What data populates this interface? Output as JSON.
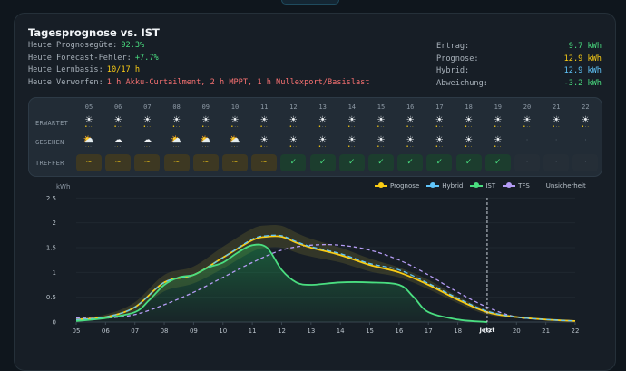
{
  "title": "Tagesprognose vs. IST",
  "info": [
    {
      "label": "Heute Prognosegüte:",
      "value": "92.3%",
      "color": "#4ade80"
    },
    {
      "label": "Heute Forecast-Fehler:",
      "value": "+7.7%",
      "color": "#4ade80"
    },
    {
      "label": "Heute Lernbasis:",
      "value": "10/17 h",
      "color": "#facc15"
    },
    {
      "label": "Heute Verworfen:",
      "value": "1 h Akku-Curtailment, 2 h MPPT, 1 h Nullexport/Basislast",
      "color": "#f87171"
    }
  ],
  "stats": [
    {
      "label": "Ertrag:",
      "value": "9.7 kWh",
      "color": "#4ade80"
    },
    {
      "label": "Prognose:",
      "value": "12.9 kWh",
      "color": "#facc15"
    },
    {
      "label": "Hybrid:",
      "value": "12.9 kWh",
      "color": "#60c5fa"
    },
    {
      "label": "Abweichung:",
      "value": "-3.2 kWh",
      "color": "#4ade80"
    }
  ],
  "weather_grid": {
    "hours": [
      "05",
      "06",
      "07",
      "08",
      "09",
      "10",
      "11",
      "12",
      "13",
      "14",
      "15",
      "16",
      "17",
      "18",
      "19",
      "20",
      "21",
      "22"
    ],
    "row_labels": [
      "ERWARTET",
      "GESEHEN",
      "TREFFER"
    ],
    "expected": [
      "sun",
      "sun",
      "sun",
      "sun",
      "sun",
      "sun",
      "sun",
      "sun",
      "sun",
      "sun",
      "sun",
      "sun",
      "sun",
      "sun",
      "sun",
      "sun",
      "sun",
      "sun"
    ],
    "seen": [
      "partly",
      "cloud",
      "cloud",
      "partly",
      "partly",
      "partly",
      "sun",
      "sun",
      "sun",
      "sun",
      "sun",
      "sun",
      "sun",
      "sun",
      "sun",
      "none",
      "none",
      "none"
    ],
    "hits": [
      "~",
      "~",
      "~",
      "~",
      "~",
      "~",
      "~",
      "✓",
      "✓",
      "✓",
      "✓",
      "✓",
      "✓",
      "✓",
      "✓",
      "·",
      "·",
      "·"
    ]
  },
  "legend": [
    "Prognose",
    "Hybrid",
    "IST",
    "TFS",
    "Unsicherheit"
  ],
  "colors": {
    "prognose": "#facc15",
    "hybrid": "#60c5fa",
    "ist": "#4ade80",
    "tfs": "#b59cf5",
    "band": "#4a4a2a"
  },
  "chart_data": {
    "type": "line",
    "ylabel": "kWh",
    "ylim": [
      0,
      3
    ],
    "yticks": [
      0,
      0.5,
      1,
      1.5,
      2,
      2.5
    ],
    "xlim": [
      5,
      22
    ],
    "xticks": [
      "05",
      "06",
      "07",
      "08",
      "09",
      "10",
      "11",
      "12",
      "13",
      "14",
      "15",
      "16",
      "17",
      "18",
      "19",
      "20",
      "21",
      "22"
    ],
    "now_label": "Jetzt",
    "now_x": 19.0,
    "series": [
      {
        "name": "Prognose",
        "x": [
          5,
          6,
          7,
          8,
          9,
          10,
          11,
          11.5,
          12,
          12.5,
          13,
          14,
          15,
          16,
          17,
          18,
          19,
          20,
          21,
          22
        ],
        "values": [
          0.05,
          0.1,
          0.3,
          0.8,
          0.95,
          1.3,
          1.65,
          1.72,
          1.72,
          1.6,
          1.5,
          1.35,
          1.15,
          1.0,
          0.75,
          0.45,
          0.2,
          0.1,
          0.05,
          0.02
        ]
      },
      {
        "name": "Hybrid",
        "x": [
          5,
          6,
          7,
          8,
          9,
          10,
          11,
          11.5,
          12,
          12.5,
          13,
          14,
          15,
          16,
          17,
          18,
          19,
          20,
          21,
          22
        ],
        "values": [
          0.05,
          0.1,
          0.3,
          0.8,
          0.95,
          1.3,
          1.67,
          1.74,
          1.74,
          1.62,
          1.52,
          1.38,
          1.18,
          1.05,
          0.78,
          0.48,
          0.22,
          0.1,
          0.05,
          0.02
        ]
      },
      {
        "name": "IST",
        "x": [
          5,
          6,
          7,
          7.5,
          8,
          8.5,
          9,
          9.5,
          10,
          10.5,
          11,
          11.5,
          12,
          12.5,
          13,
          14,
          15,
          16,
          16.5,
          17,
          18,
          19
        ],
        "values": [
          0.02,
          0.08,
          0.2,
          0.45,
          0.75,
          0.9,
          0.95,
          1.1,
          1.2,
          1.4,
          1.55,
          1.5,
          1.05,
          0.8,
          0.75,
          0.8,
          0.8,
          0.75,
          0.5,
          0.2,
          0.05,
          0.0
        ]
      },
      {
        "name": "TFS",
        "x": [
          5,
          6,
          7,
          8,
          9,
          10,
          11,
          12,
          13,
          14,
          15,
          16,
          17,
          18,
          19,
          20,
          21,
          22
        ],
        "values": [
          0.08,
          0.08,
          0.15,
          0.35,
          0.6,
          0.9,
          1.2,
          1.45,
          1.55,
          1.55,
          1.45,
          1.25,
          0.95,
          0.6,
          0.3,
          0.1,
          0.05,
          0.02
        ]
      },
      {
        "name": "Unsicherheit",
        "x": [
          5,
          6,
          7,
          8,
          9,
          10,
          11,
          11.5,
          12,
          12.5,
          13,
          14,
          15,
          16,
          17,
          18,
          19,
          20,
          21,
          22
        ],
        "upper": [
          0.08,
          0.15,
          0.4,
          0.95,
          1.12,
          1.52,
          1.88,
          1.95,
          1.94,
          1.8,
          1.68,
          1.5,
          1.28,
          1.1,
          0.85,
          0.52,
          0.25,
          0.12,
          0.06,
          0.03
        ],
        "lower": [
          0.02,
          0.06,
          0.22,
          0.62,
          0.78,
          1.08,
          1.42,
          1.5,
          1.5,
          1.4,
          1.32,
          1.2,
          1.02,
          0.9,
          0.66,
          0.38,
          0.15,
          0.08,
          0.04,
          0.01
        ]
      }
    ]
  }
}
